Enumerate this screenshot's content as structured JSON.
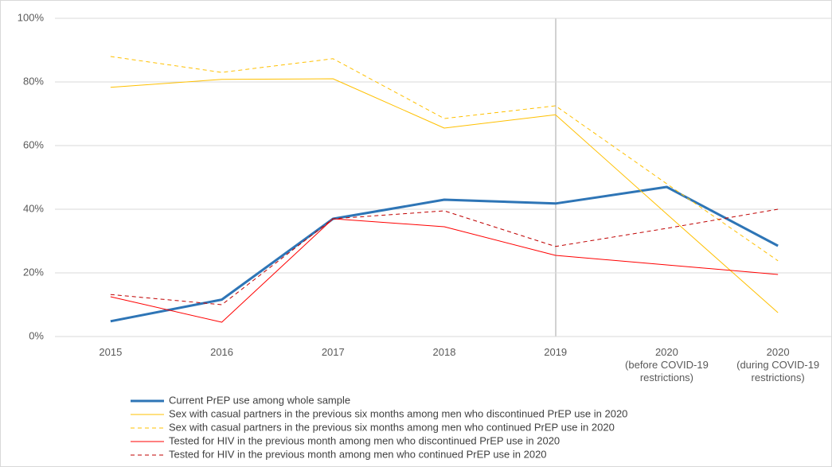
{
  "chart_data": {
    "type": "line",
    "categories": [
      "2015",
      "2016",
      "2017",
      "2018",
      "2019",
      "2020\n(before COVID-19\nrestrictions)",
      "2020\n(during COVID-19\nrestrictions)"
    ],
    "series": [
      {
        "name": "Current PrEP use among whole sample",
        "color": "#2e75b6",
        "dashed": false,
        "line_width": 3,
        "values": [
          4.8,
          11.6,
          37,
          43,
          41.8,
          47,
          28.5
        ]
      },
      {
        "name": "Sex with casual partners in the previous six months among men who discontinued PrEP use in 2020",
        "color": "#ffc000",
        "dashed": false,
        "line_width": 1,
        "values": [
          78.3,
          80.8,
          81,
          65.5,
          69.7,
          38.5,
          7.5
        ]
      },
      {
        "name": "Sex with casual partners in the previous six months among men who continued PrEP use in 2020",
        "color": "#ffc000",
        "dashed": true,
        "line_width": 1,
        "values": [
          88,
          83,
          87.3,
          68.5,
          72.5,
          48,
          23.8
        ]
      },
      {
        "name": "Tested for HIV in the previous month among men who discontinued PrEP use in 2020",
        "color": "#ff0000",
        "dashed": false,
        "line_width": 1,
        "values": [
          12.5,
          4.5,
          37,
          34.5,
          25.5,
          22.5,
          19.5
        ]
      },
      {
        "name": "Tested for HIV in the previous month among men who continued PrEP use in 2020",
        "color": "#c00000",
        "dashed": true,
        "line_width": 1,
        "values": [
          13.2,
          10,
          37,
          39.5,
          28.3,
          34,
          40
        ]
      }
    ],
    "ylim": [
      0,
      100
    ],
    "yticks": [
      {
        "value": 0,
        "label": "0%"
      },
      {
        "value": 20,
        "label": "20%"
      },
      {
        "value": 40,
        "label": "40%"
      },
      {
        "value": 60,
        "label": "60%"
      },
      {
        "value": 80,
        "label": "80%"
      },
      {
        "value": 100,
        "label": "100%"
      }
    ],
    "grid": true
  }
}
